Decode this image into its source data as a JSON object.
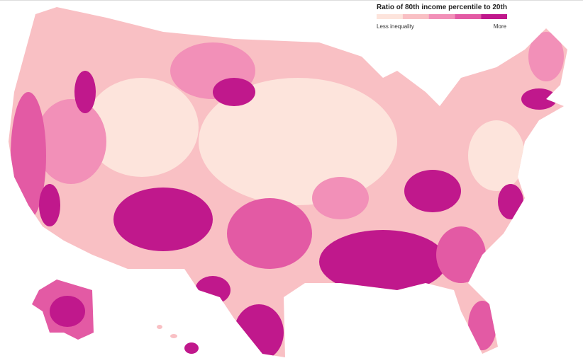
{
  "legend": {
    "title": "Ratio of 80th income percentile to 20th",
    "low_label": "Less inequality",
    "high_label": "More",
    "colors": [
      "#fde4dc",
      "#f9c0c4",
      "#f290b8",
      "#e35aa4",
      "#c0188c"
    ]
  }
}
